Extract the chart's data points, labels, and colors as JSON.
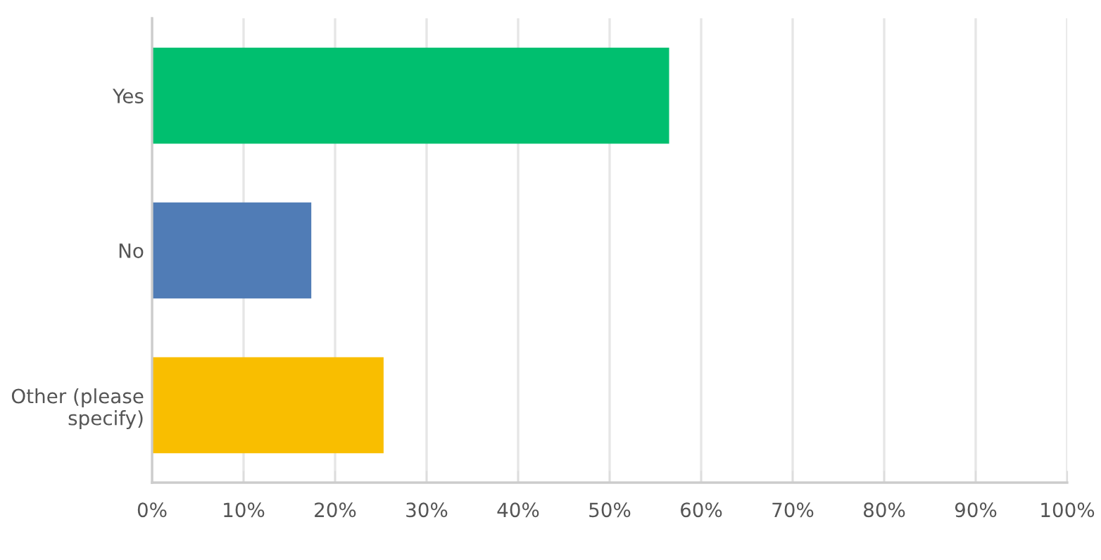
{
  "chart_data": {
    "type": "bar",
    "orientation": "horizontal",
    "categories": [
      "Yes",
      "No",
      "Other (please\nspecify)"
    ],
    "values": [
      56.5,
      17.4,
      25.3
    ],
    "colors": [
      "#00bf6f",
      "#507cb6",
      "#f9be00"
    ],
    "xlim": [
      0,
      100
    ],
    "xticks": [
      {
        "value": 0,
        "label": "0%"
      },
      {
        "value": 10,
        "label": "10%"
      },
      {
        "value": 20,
        "label": "20%"
      },
      {
        "value": 30,
        "label": "30%"
      },
      {
        "value": 40,
        "label": "40%"
      },
      {
        "value": 50,
        "label": "50%"
      },
      {
        "value": 60,
        "label": "60%"
      },
      {
        "value": 70,
        "label": "70%"
      },
      {
        "value": 80,
        "label": "80%"
      },
      {
        "value": 90,
        "label": "90%"
      },
      {
        "value": 100,
        "label": "100%"
      }
    ],
    "grid": "x"
  }
}
